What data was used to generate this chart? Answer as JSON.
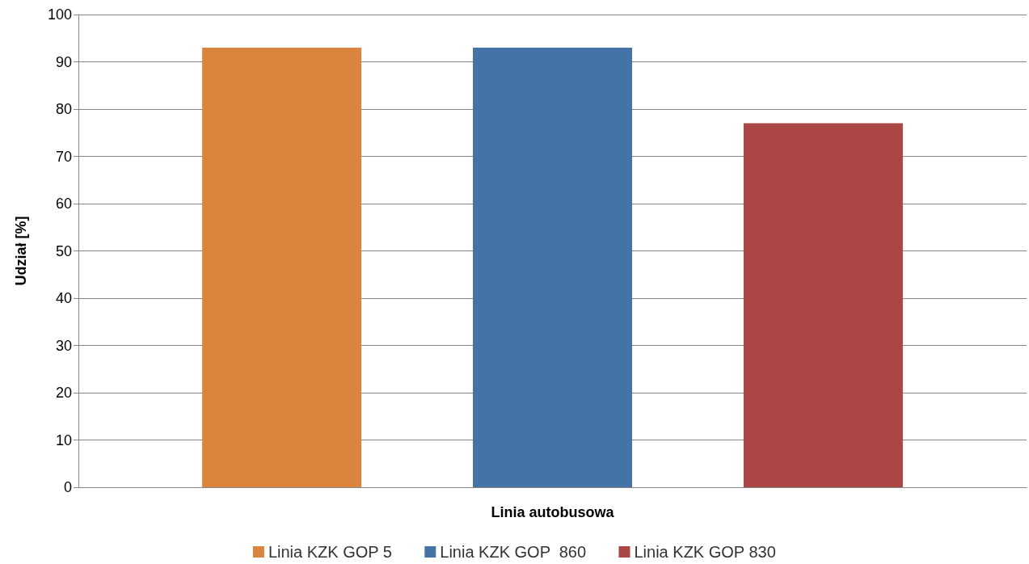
{
  "chart_data": {
    "type": "bar",
    "xlabel": "Linia autobusowa",
    "ylabel": "Udział [%]",
    "categories": [
      null
    ],
    "series": [
      {
        "name": "Linia KZK GOP 5",
        "color": "#db843d",
        "values": [
          93
        ]
      },
      {
        "name": "Linia KZK GOP  860",
        "color": "#4572a7",
        "values": [
          93
        ]
      },
      {
        "name": "Linia KZK GOP 830",
        "color": "#aa4643",
        "values": [
          77
        ]
      }
    ],
    "ylim": [
      0,
      100
    ],
    "yticks": [
      0,
      10,
      20,
      30,
      40,
      50,
      60,
      70,
      80,
      90,
      100
    ],
    "grid": "y",
    "legend": "bottom"
  }
}
